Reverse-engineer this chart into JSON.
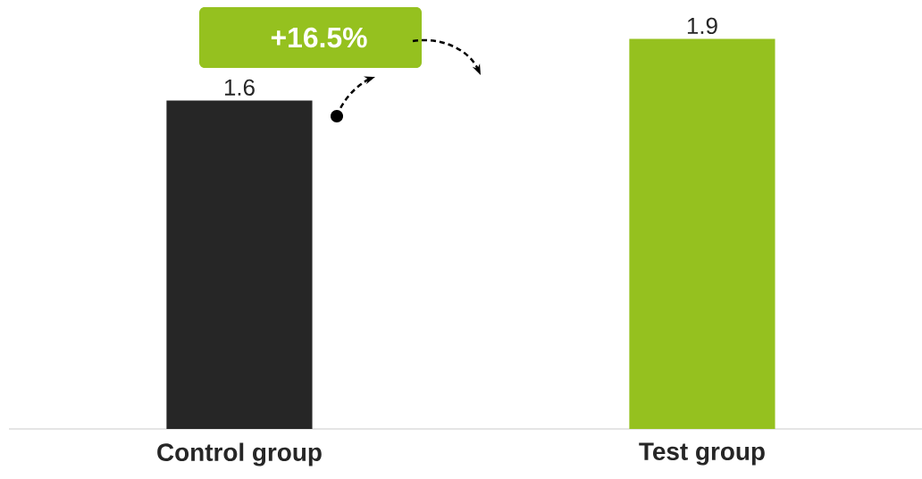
{
  "chart_data": {
    "type": "bar",
    "categories": [
      "Control group",
      "Test group"
    ],
    "values": [
      1.6,
      1.9
    ],
    "colors": [
      "#262626",
      "#95c11f"
    ],
    "data_labels": true,
    "annotations": [
      "+16.5%"
    ]
  }
}
